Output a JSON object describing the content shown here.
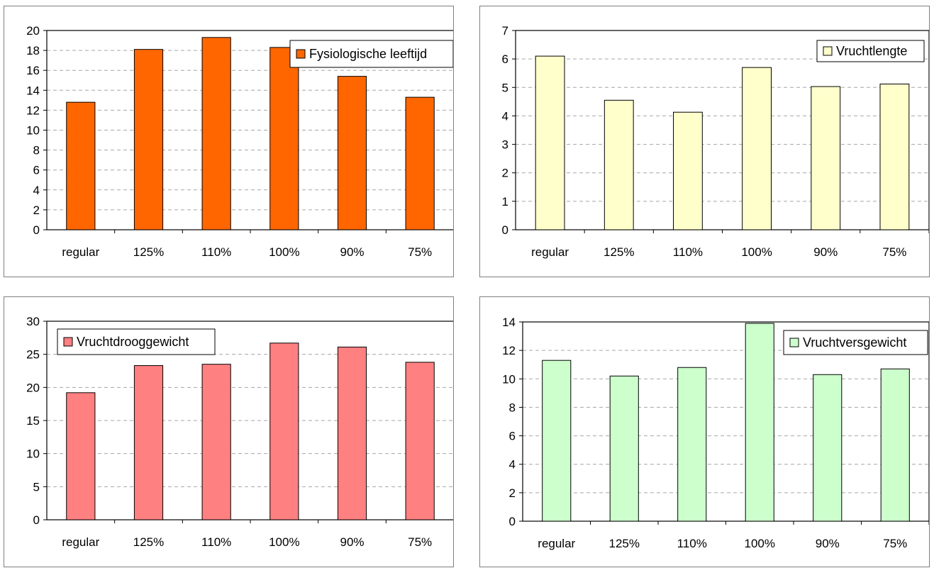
{
  "chart_data": [
    {
      "type": "bar",
      "categories": [
        "regular",
        "125%",
        "110%",
        "100%",
        "90%",
        "75%"
      ],
      "series": [
        {
          "name": "Fysiologische leeftijd",
          "values": [
            12.8,
            18.1,
            19.3,
            18.3,
            15.4,
            13.3
          ],
          "color": "#ff6600"
        }
      ],
      "ylim": [
        0,
        20
      ],
      "yticks": [
        0,
        2,
        4,
        6,
        8,
        10,
        12,
        14,
        16,
        18,
        20
      ],
      "grid": true,
      "legend": "top-right"
    },
    {
      "type": "bar",
      "categories": [
        "regular",
        "125%",
        "110%",
        "100%",
        "90%",
        "75%"
      ],
      "series": [
        {
          "name": "Vruchtlengte",
          "values": [
            6.1,
            4.55,
            4.13,
            5.7,
            5.03,
            5.12
          ],
          "color": "#ffffcc"
        }
      ],
      "ylim": [
        0,
        7
      ],
      "yticks": [
        0,
        1,
        2,
        3,
        4,
        5,
        6,
        7
      ],
      "grid": true,
      "legend": "top-right"
    },
    {
      "type": "bar",
      "categories": [
        "regular",
        "125%",
        "110%",
        "100%",
        "90%",
        "75%"
      ],
      "series": [
        {
          "name": "Vruchtdrooggewicht",
          "values": [
            19.2,
            23.3,
            23.5,
            26.7,
            26.1,
            23.8
          ],
          "color": "#ff8080"
        }
      ],
      "ylim": [
        0,
        30
      ],
      "yticks": [
        0,
        5,
        10,
        15,
        20,
        25,
        30
      ],
      "grid": true,
      "legend": "top-left"
    },
    {
      "type": "bar",
      "categories": [
        "regular",
        "125%",
        "110%",
        "100%",
        "90%",
        "75%"
      ],
      "series": [
        {
          "name": "Vruchtversgewicht",
          "values": [
            11.3,
            10.2,
            10.8,
            13.9,
            10.3,
            10.7
          ],
          "color": "#ccffcc"
        }
      ],
      "ylim": [
        0,
        14
      ],
      "yticks": [
        0,
        2,
        4,
        6,
        8,
        10,
        12,
        14
      ],
      "grid": true,
      "legend": "top-right"
    }
  ]
}
